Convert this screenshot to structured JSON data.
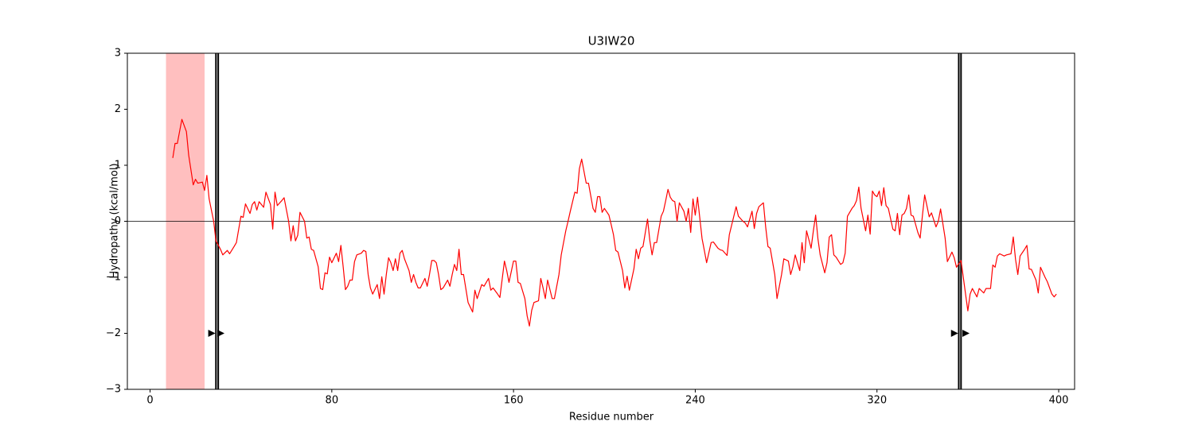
{
  "chart_data": {
    "type": "line",
    "title": "U3IW20",
    "xlabel": "Residue number",
    "ylabel": "Hydropathy (kcal/mol)",
    "xlim": [
      -10,
      407
    ],
    "ylim": [
      -3,
      3
    ],
    "xticks": [
      0,
      80,
      160,
      240,
      320,
      400
    ],
    "yticks": [
      {
        "value": -3,
        "label": "−3"
      },
      {
        "value": -2,
        "label": "−2"
      },
      {
        "value": -1,
        "label": "−1"
      },
      0,
      1,
      2,
      3
    ],
    "grid": false,
    "hline": 0,
    "span": {
      "range": [
        7,
        24
      ],
      "color": "#ffbfbf"
    },
    "vlines": [
      29,
      30,
      356,
      357
    ],
    "markers": {
      "x": [
        27,
        31,
        354,
        359
      ],
      "y": [
        -2,
        -2,
        -2,
        -2
      ]
    },
    "series": [
      {
        "color": "#ff0000",
        "x": [
          10,
          11,
          12,
          14,
          16,
          17,
          19,
          20,
          21,
          23,
          24,
          25,
          26,
          28,
          29,
          31,
          32,
          34,
          35,
          37,
          38,
          40,
          41,
          42,
          44,
          45,
          46,
          47,
          48,
          50,
          51,
          53,
          54,
          55,
          56,
          58,
          59,
          61,
          62,
          63,
          64,
          65,
          66,
          68,
          69,
          70,
          71,
          72,
          74,
          75,
          76,
          77,
          78,
          79,
          80,
          82,
          83,
          84,
          85,
          86,
          87,
          88,
          89,
          90,
          91,
          93,
          94,
          95,
          96,
          97,
          98,
          100,
          101,
          102,
          103,
          104,
          105,
          106,
          107,
          108,
          109,
          110,
          111,
          112,
          114,
          115,
          116,
          117,
          118,
          119,
          121,
          122,
          123,
          124,
          125,
          126,
          127,
          128,
          129,
          131,
          132,
          133,
          134,
          135,
          136,
          137,
          138,
          140,
          142,
          143,
          144,
          146,
          147,
          149,
          150,
          151,
          153,
          154,
          156,
          157,
          158,
          160,
          161,
          162,
          163,
          165,
          166,
          167,
          168,
          169,
          171,
          172,
          173,
          174,
          175,
          177,
          178,
          180,
          181,
          183,
          184,
          185,
          187,
          188,
          189,
          190,
          192,
          193,
          195,
          196,
          197,
          198,
          199,
          200,
          202,
          203,
          204,
          205,
          206,
          208,
          209,
          210,
          211,
          213,
          214,
          215,
          216,
          217,
          219,
          220,
          221,
          222,
          223,
          225,
          226,
          227,
          228,
          229,
          230,
          231,
          232,
          233,
          235,
          236,
          237,
          238,
          239,
          240,
          241,
          243,
          244,
          245,
          247,
          248,
          250,
          251,
          252,
          254,
          255,
          258,
          259,
          261,
          262,
          263,
          265,
          266,
          267,
          268,
          270,
          271,
          272,
          273,
          275,
          276,
          278,
          279,
          281,
          282,
          283,
          284,
          286,
          287,
          288,
          289,
          291,
          292,
          293,
          294,
          295,
          297,
          298,
          299,
          300,
          301,
          302,
          304,
          305,
          306,
          307,
          309,
          310,
          311,
          312,
          313,
          315,
          316,
          317,
          318,
          319,
          320,
          321,
          322,
          323,
          324,
          325,
          327,
          328,
          329,
          330,
          331,
          332,
          333,
          334,
          335,
          336,
          338,
          339,
          340,
          341,
          343,
          344,
          346,
          347,
          348,
          350,
          351,
          353,
          354,
          355,
          357,
          358,
          360,
          361,
          362,
          364,
          365,
          367,
          368,
          370,
          371,
          372,
          373,
          374,
          376,
          377,
          379,
          380,
          381,
          382,
          383,
          385,
          386,
          387,
          388,
          390,
          391,
          392,
          394,
          395,
          397,
          398,
          399
        ],
        "values": [
          1.13,
          1.39,
          1.39,
          1.82,
          1.6,
          1.18,
          0.65,
          0.75,
          0.68,
          0.7,
          0.55,
          0.82,
          0.4,
          0,
          -0.35,
          -0.5,
          -0.6,
          -0.52,
          -0.58,
          -0.45,
          -0.38,
          0.09,
          0.07,
          0.31,
          0.14,
          0.3,
          0.35,
          0.2,
          0.35,
          0.25,
          0.52,
          0.3,
          -0.14,
          0.52,
          0.28,
          0.37,
          0.42,
          0,
          -0.35,
          -0.08,
          -0.35,
          -0.25,
          0.16,
          0,
          -0.3,
          -0.28,
          -0.5,
          -0.52,
          -0.81,
          -1.2,
          -1.22,
          -0.92,
          -0.94,
          -0.64,
          -0.74,
          -0.57,
          -0.72,
          -0.43,
          -0.81,
          -1.22,
          -1.16,
          -1.05,
          -1.05,
          -0.72,
          -0.6,
          -0.57,
          -0.52,
          -0.54,
          -0.95,
          -1.19,
          -1.3,
          -1.13,
          -1.38,
          -0.99,
          -1.3,
          -0.95,
          -0.65,
          -0.74,
          -0.88,
          -0.67,
          -0.88,
          -0.57,
          -0.52,
          -0.67,
          -0.88,
          -1.09,
          -0.95,
          -1.09,
          -1.19,
          -1.19,
          -1.02,
          -1.16,
          -0.95,
          -0.7,
          -0.7,
          -0.74,
          -0.95,
          -1.22,
          -1.19,
          -1.05,
          -1.16,
          -0.95,
          -0.77,
          -0.88,
          -0.5,
          -0.95,
          -0.95,
          -1.45,
          -1.62,
          -1.23,
          -1.38,
          -1.13,
          -1.16,
          -1.02,
          -1.23,
          -1.19,
          -1.3,
          -1.36,
          -0.71,
          -0.88,
          -1.09,
          -0.71,
          -0.71,
          -1.09,
          -1.11,
          -1.38,
          -1.69,
          -1.87,
          -1.59,
          -1.45,
          -1.42,
          -1.02,
          -1.19,
          -1.38,
          -1.05,
          -1.38,
          -1.38,
          -0.95,
          -0.6,
          -0.17,
          0,
          0.18,
          0.52,
          0.5,
          0.94,
          1.11,
          0.68,
          0.68,
          0.23,
          0.16,
          0.44,
          0.44,
          0.16,
          0.23,
          0.11,
          -0.06,
          -0.24,
          -0.52,
          -0.55,
          -0.88,
          -1.19,
          -0.98,
          -1.23,
          -0.85,
          -0.5,
          -0.67,
          -0.48,
          -0.45,
          0.04,
          -0.34,
          -0.6,
          -0.38,
          -0.38,
          0.09,
          0.18,
          0.37,
          0.57,
          0.43,
          0.37,
          0.35,
          0,
          0.33,
          0.18,
          0,
          0.23,
          -0.2,
          0.4,
          0.11,
          0.43,
          -0.31,
          -0.52,
          -0.74,
          -0.38,
          -0.37,
          -0.48,
          -0.51,
          -0.52,
          -0.61,
          -0.24,
          0.26,
          0.09,
          0,
          -0.03,
          -0.1,
          0.18,
          -0.13,
          0.14,
          0.26,
          0.33,
          -0.1,
          -0.45,
          -0.48,
          -0.95,
          -1.38,
          -0.95,
          -0.67,
          -0.71,
          -0.95,
          -0.81,
          -0.6,
          -0.88,
          -0.38,
          -0.74,
          -0.17,
          -0.48,
          -0.17,
          0.11,
          -0.31,
          -0.6,
          -0.92,
          -0.74,
          -0.28,
          -0.24,
          -0.6,
          -0.64,
          -0.77,
          -0.74,
          -0.57,
          0.09,
          0.23,
          0.28,
          0.37,
          0.61,
          0.23,
          -0.17,
          0.11,
          -0.23,
          0.54,
          0.47,
          0.44,
          0.54,
          0.28,
          0.6,
          0.28,
          0.23,
          -0.14,
          -0.17,
          0.14,
          -0.24,
          0.11,
          0.14,
          0.23,
          0.47,
          0.11,
          0.09,
          -0.2,
          -0.3,
          0.1,
          0.47,
          0.08,
          0.15,
          -0.1,
          0,
          0.22,
          -0.3,
          -0.72,
          -0.55,
          -0.65,
          -0.82,
          -0.7,
          -1.0,
          -1.6,
          -1.3,
          -1.2,
          -1.35,
          -1.2,
          -1.28,
          -1.2,
          -1.2,
          -0.78,
          -0.82,
          -0.62,
          -0.58,
          -0.62,
          -0.6,
          -0.58,
          -0.28,
          -0.68,
          -0.95,
          -0.62,
          -0.5,
          -0.43,
          -0.85,
          -0.86,
          -1.05,
          -1.28,
          -0.82,
          -1.0,
          -1.08,
          -1.3,
          -1.35,
          -1.3
        ]
      }
    ]
  }
}
